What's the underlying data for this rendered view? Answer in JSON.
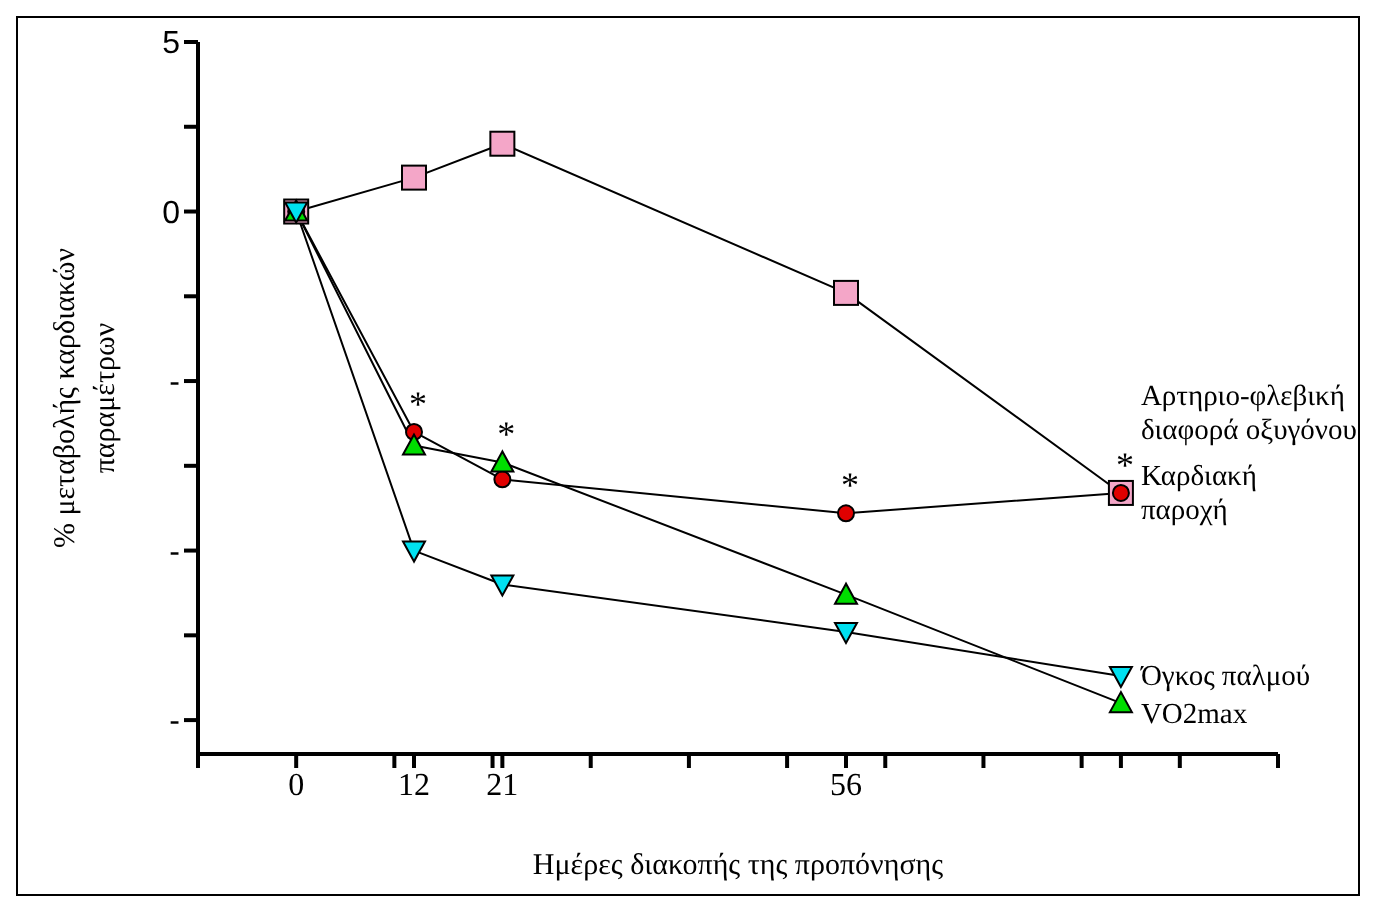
{
  "chart_data": {
    "type": "line",
    "xlabel": "Ημέρες διακοπής της προπόνησης",
    "ylabel": "% μεταβολής καρδιακών παραμέτρων",
    "x": [
      0,
      12,
      21,
      56,
      84
    ],
    "xlim": [
      -10,
      100
    ],
    "xticks": [
      {
        "value": -10,
        "label": null
      },
      0,
      {
        "value": 10,
        "label": null
      },
      12,
      {
        "value": 20,
        "label": null
      },
      21,
      {
        "value": 30,
        "label": null
      },
      {
        "value": 40,
        "label": null
      },
      {
        "value": 50,
        "label": null
      },
      56,
      {
        "value": 60,
        "label": null
      },
      {
        "value": 70,
        "label": null
      },
      {
        "value": 80,
        "label": null
      },
      {
        "value": 84,
        "label": null
      },
      {
        "value": 90,
        "label": null
      },
      {
        "value": 100,
        "label": null
      }
    ],
    "ylim": [
      -16,
      5
    ],
    "yticks": [
      5,
      {
        "value": 2.5,
        "label": null
      },
      0,
      {
        "value": -2.5,
        "label": null
      },
      {
        "value": -5,
        "label": "-"
      },
      {
        "value": -7.5,
        "label": null
      },
      {
        "value": -10,
        "label": "-"
      },
      {
        "value": -12.5,
        "label": null
      },
      {
        "value": -15,
        "label": "-"
      }
    ],
    "series": [
      {
        "name": "Αρτηριο-φλεβική διαφορά οξυγόνου",
        "color": "#f4a6c8",
        "marker": "square",
        "values": [
          0,
          1.0,
          2.0,
          -2.4,
          -8.3
        ]
      },
      {
        "name": "Καρδιακή παροχή",
        "color": "#e00000",
        "marker": "circle",
        "values": [
          0,
          -6.5,
          -7.9,
          -8.9,
          -8.3
        ]
      },
      {
        "name": "VO2max",
        "color": "#00dd00",
        "marker": "triangle",
        "values": [
          0,
          -6.9,
          -7.4,
          -11.3,
          -14.5
        ]
      },
      {
        "name": "Όγκος παλμού",
        "color": "#00e0f0",
        "marker": "triangle-down",
        "values": [
          0,
          -10.0,
          -11.0,
          -12.4,
          -13.7
        ]
      }
    ],
    "annotations": [
      {
        "text": "*",
        "x": 12,
        "y": -6.5
      },
      {
        "text": "*",
        "x": 21,
        "y": -7.4
      },
      {
        "text": "*",
        "x": 56,
        "y": -8.9
      },
      {
        "text": "*",
        "x": 84,
        "y": -8.3
      }
    ],
    "legend": false,
    "grid": false
  }
}
